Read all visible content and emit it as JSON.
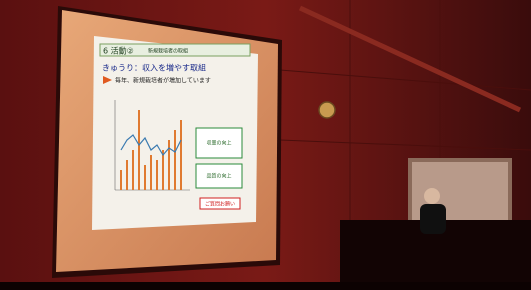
{
  "slide": {
    "section": "6 活動②",
    "subtitle": "新規栽培者の取組",
    "heading": "きゅうり：収入を増やす取組",
    "note": "毎年、新規栽培者が増加しています",
    "side_boxes": [
      "収量の向上",
      "品質の向上"
    ],
    "footer_button": "ご質問お願い"
  }
}
